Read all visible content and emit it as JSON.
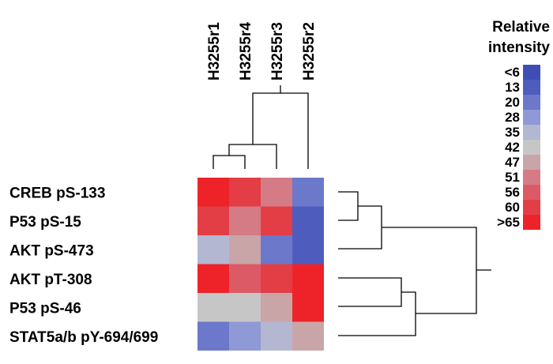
{
  "chart_data": {
    "type": "heatmap",
    "columns": [
      "H3255r1",
      "H3255r4",
      "H3255r3",
      "H3255r2"
    ],
    "rows": [
      "CREB pS-133",
      "P53 pS-15",
      "AKT pS-473",
      "AKT pT-308",
      "P53 pS-46",
      "STAT5a/b pY-694/699"
    ],
    "values": [
      [
        63,
        57,
        49,
        14
      ],
      [
        59,
        48,
        60,
        11
      ],
      [
        33,
        45,
        17,
        10
      ],
      [
        66,
        55,
        58,
        66
      ],
      [
        39,
        36,
        43,
        66
      ],
      [
        16,
        27,
        30,
        47
      ]
    ],
    "colorbar": {
      "title_lines": [
        "Relative",
        "intensity"
      ],
      "labels": [
        "<6",
        "13",
        "20",
        "28",
        "35",
        "42",
        "47",
        "51",
        "56",
        "60",
        ">65"
      ],
      "colors": [
        "#3f4eb6",
        "#4e5dbd",
        "#6c78c9",
        "#8f99d6",
        "#b3b7d2",
        "#c6c6c6",
        "#c9a5a8",
        "#d57b85",
        "#dc5a66",
        "#e33d45",
        "#ee2329"
      ],
      "thresholds": [
        6,
        13,
        20,
        28,
        35,
        42,
        47,
        51,
        56,
        60,
        65
      ]
    },
    "dendrogram_columns": "yes",
    "dendrogram_rows": "yes"
  }
}
